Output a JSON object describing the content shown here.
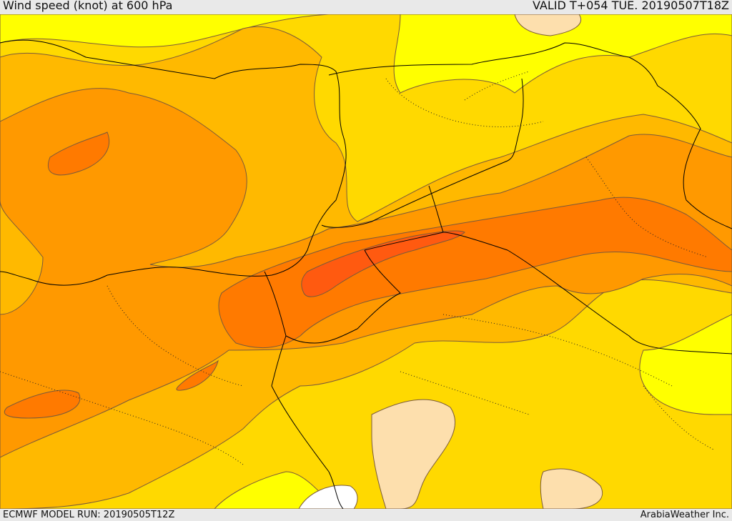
{
  "header": {
    "title": "Wind speed (knot) at 600 hPa",
    "valid": "VALID T+054 TUE. 20190507T18Z"
  },
  "footer": {
    "model_run": "ECMWF MODEL RUN: 20190505T12Z",
    "credit": "ArabiaWeather Inc."
  },
  "map": {
    "field": "wind speed at 600 hPa",
    "units": "knot",
    "fill_colors": {
      "lightest": "#fddfad",
      "level_1": "#ffff00",
      "level_2": "#ffd900",
      "level_3": "#ffb900",
      "level_4": "#ff9900",
      "level_5": "#ff7a00",
      "level_6": "#ff5a10",
      "no_data": "#ffffff"
    },
    "line_colors": {
      "contour": "#7a5a3a",
      "border": "#000000"
    }
  }
}
